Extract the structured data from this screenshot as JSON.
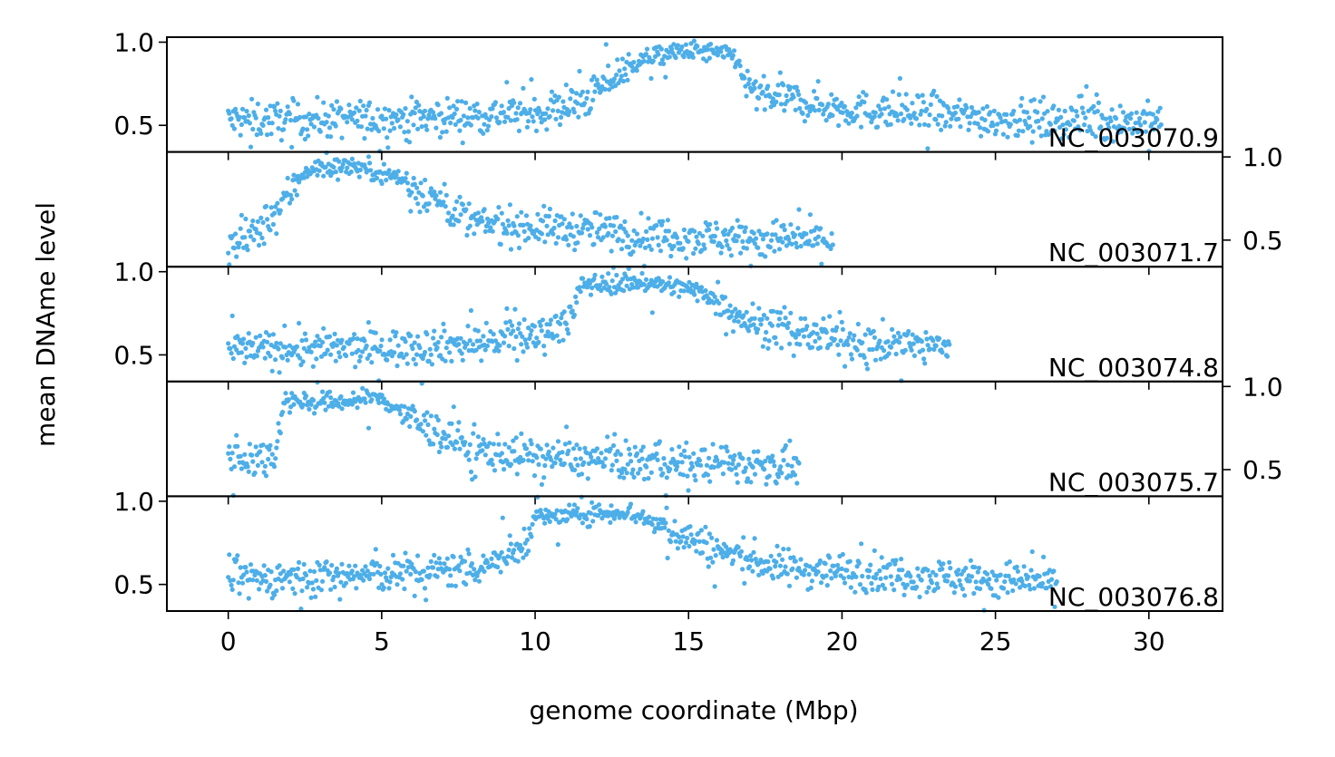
{
  "chart_data": {
    "type": "scatter",
    "xlabel": "genome coordinate (Mbp)",
    "ylabel": "mean DNAme level",
    "xlim": [
      -2,
      32.4
    ],
    "xticks": [
      0,
      5,
      10,
      15,
      20,
      25,
      30
    ],
    "yticks": [
      0.5,
      1.0
    ],
    "color": "#4daee8",
    "panels": [
      {
        "label": "NC_003070.9",
        "ylim": [
          0.34,
          1.03
        ],
        "y_axis_side": "left",
        "length_mbp": 30.4,
        "trend": [
          [
            0,
            0.53
          ],
          [
            5,
            0.54
          ],
          [
            8,
            0.56
          ],
          [
            10,
            0.58
          ],
          [
            11.5,
            0.63
          ],
          [
            12.5,
            0.78
          ],
          [
            13.5,
            0.9
          ],
          [
            15,
            0.95
          ],
          [
            16.5,
            0.92
          ],
          [
            17,
            0.7
          ],
          [
            20,
            0.6
          ],
          [
            25,
            0.54
          ],
          [
            30.4,
            0.52
          ]
        ]
      },
      {
        "label": "NC_003071.7",
        "ylim": [
          0.34,
          1.03
        ],
        "y_axis_side": "right",
        "length_mbp": 19.7,
        "trend": [
          [
            0,
            0.45
          ],
          [
            1,
            0.55
          ],
          [
            2,
            0.78
          ],
          [
            2.5,
            0.92
          ],
          [
            4,
            0.95
          ],
          [
            5.5,
            0.88
          ],
          [
            7,
            0.72
          ],
          [
            8,
            0.6
          ],
          [
            10,
            0.58
          ],
          [
            15,
            0.52
          ],
          [
            19.7,
            0.5
          ]
        ]
      },
      {
        "label": "NC_003074.8",
        "ylim": [
          0.34,
          1.03
        ],
        "y_axis_side": "left",
        "length_mbp": 23.5,
        "trend": [
          [
            0,
            0.53
          ],
          [
            5,
            0.54
          ],
          [
            8,
            0.57
          ],
          [
            10,
            0.62
          ],
          [
            11.2,
            0.72
          ],
          [
            11.5,
            0.92
          ],
          [
            13.5,
            0.94
          ],
          [
            15.5,
            0.88
          ],
          [
            17,
            0.7
          ],
          [
            20,
            0.58
          ],
          [
            23.5,
            0.55
          ]
        ]
      },
      {
        "label": "NC_003075.7",
        "ylim": [
          0.34,
          1.03
        ],
        "y_axis_side": "right",
        "length_mbp": 18.6,
        "trend": [
          [
            0,
            0.56
          ],
          [
            1.5,
            0.58
          ],
          [
            1.8,
            0.92
          ],
          [
            3,
            0.9
          ],
          [
            5,
            0.93
          ],
          [
            6,
            0.8
          ],
          [
            8,
            0.62
          ],
          [
            10,
            0.58
          ],
          [
            13,
            0.55
          ],
          [
            18.6,
            0.52
          ]
        ]
      },
      {
        "label": "NC_003076.8",
        "ylim": [
          0.34,
          1.03
        ],
        "y_axis_side": "left",
        "length_mbp": 27.0,
        "trend": [
          [
            0,
            0.53
          ],
          [
            5,
            0.56
          ],
          [
            8,
            0.6
          ],
          [
            9.5,
            0.7
          ],
          [
            10,
            0.9
          ],
          [
            13,
            0.94
          ],
          [
            14,
            0.86
          ],
          [
            16,
            0.7
          ],
          [
            18,
            0.6
          ],
          [
            22,
            0.56
          ],
          [
            27,
            0.51
          ]
        ]
      }
    ],
    "grid": false
  }
}
